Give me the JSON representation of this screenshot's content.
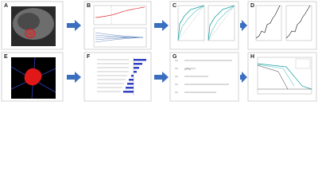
{
  "panels": [
    {
      "label": "A"
    },
    {
      "label": "B"
    },
    {
      "label": "C"
    },
    {
      "label": "D"
    },
    {
      "label": "E"
    },
    {
      "label": "F"
    },
    {
      "label": "G"
    },
    {
      "label": "H"
    }
  ]
}
